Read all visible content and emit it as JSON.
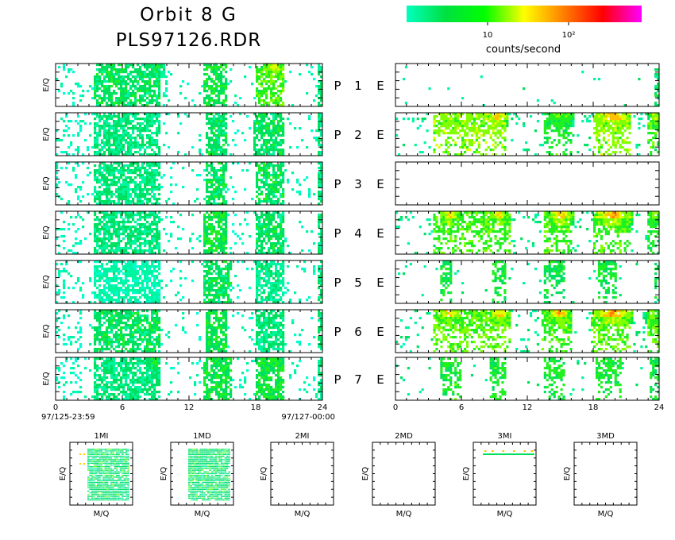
{
  "header": {
    "title": "Orbit 8 G",
    "filename": "PLS97126.RDR",
    "colorbar_ticks": [
      "10",
      "10²"
    ],
    "colorbar_label": "counts/second",
    "colorbar_colors": [
      "#00ffbf",
      "#00e040",
      "#00ff00",
      "#ffff00",
      "#ff8000",
      "#ff0000",
      "#ff00ff"
    ]
  },
  "chart_data": {
    "type": "heatmap",
    "xlabel": "",
    "ylabel": "E/Q",
    "xlim": [
      0,
      24
    ],
    "xticks": [
      0,
      6,
      12,
      18,
      24
    ],
    "time_start": "97/125-23:59",
    "time_end": "97/127-00:00",
    "panels": [
      {
        "label": "P",
        "index": "1",
        "right": "E",
        "left_bands": [
          [
            3.5,
            9.5,
            0.25
          ],
          [
            13.3,
            15.5,
            0.3
          ],
          [
            18,
            20.5,
            0.4
          ]
        ],
        "left_hot": [
          [
            4.5,
            5.2,
            0.35
          ],
          [
            8.5,
            9.8,
            0.3
          ],
          [
            18.8,
            20.5,
            0.65
          ]
        ],
        "right_bands": [],
        "right_hot": [],
        "right_level": "sparse"
      },
      {
        "label": "P",
        "index": "2",
        "right": "E",
        "left_bands": [
          [
            3.5,
            9.5,
            0.2
          ],
          [
            13.5,
            15.5,
            0.25
          ],
          [
            17.8,
            20.5,
            0.25
          ]
        ],
        "left_hot": [],
        "right_bands": [
          [
            3.5,
            10,
            0.5
          ],
          [
            13.5,
            16,
            0.35
          ],
          [
            18,
            21.5,
            0.5
          ],
          [
            23,
            24,
            0.4
          ]
        ],
        "right_hot": [
          [
            4.2,
            5.8,
            0.6
          ],
          [
            8.3,
            10.2,
            0.75
          ],
          [
            13.8,
            16.2,
            0.5
          ],
          [
            18.2,
            21.4,
            0.8
          ],
          [
            23.2,
            24,
            0.6
          ]
        ],
        "right_level": "banded"
      },
      {
        "label": "P",
        "index": "3",
        "right": "E",
        "left_bands": [
          [
            3.5,
            9.5,
            0.2
          ],
          [
            13.5,
            15.5,
            0.25
          ],
          [
            18,
            20.5,
            0.25
          ]
        ],
        "left_hot": [],
        "right_bands": [],
        "right_hot": [],
        "right_level": "empty"
      },
      {
        "label": "P",
        "index": "4",
        "right": "E",
        "left_bands": [
          [
            3.5,
            9.5,
            0.2
          ],
          [
            13.3,
            15.5,
            0.3
          ],
          [
            18,
            20.5,
            0.25
          ]
        ],
        "left_hot": [],
        "right_bands": [
          [
            3.5,
            10.5,
            0.4
          ],
          [
            13.5,
            16,
            0.4
          ],
          [
            18,
            21.5,
            0.4
          ],
          [
            23,
            24,
            0.35
          ]
        ],
        "right_hot": [
          [
            4.0,
            5.9,
            0.7
          ],
          [
            8.5,
            10.3,
            0.7
          ],
          [
            13.8,
            16.2,
            0.75
          ],
          [
            18.0,
            21.6,
            0.8
          ],
          [
            23.2,
            24,
            0.55
          ]
        ],
        "right_level": "banded"
      },
      {
        "label": "P",
        "index": "5",
        "right": "E",
        "left_bands": [
          [
            3.5,
            9.5,
            0.1
          ],
          [
            13.3,
            15.8,
            0.25
          ],
          [
            18,
            20.5,
            0.15
          ]
        ],
        "left_hot": [],
        "right_bands": [
          [
            4,
            5.2,
            0.3
          ],
          [
            8.8,
            10,
            0.3
          ],
          [
            13.6,
            15.5,
            0.3
          ],
          [
            18.5,
            20.2,
            0.3
          ]
        ],
        "right_hot": [],
        "right_level": "light"
      },
      {
        "label": "P",
        "index": "6",
        "right": "E",
        "left_bands": [
          [
            3.5,
            9.5,
            0.25
          ],
          [
            13.5,
            15.5,
            0.3
          ],
          [
            18,
            20.5,
            0.2
          ]
        ],
        "left_hot": [],
        "right_bands": [
          [
            3.5,
            10.5,
            0.45
          ],
          [
            13.2,
            16,
            0.4
          ],
          [
            17.8,
            21.5,
            0.45
          ],
          [
            23,
            24,
            0.4
          ]
        ],
        "right_hot": [
          [
            3.8,
            6.0,
            0.7
          ],
          [
            8.5,
            10.5,
            0.7
          ],
          [
            13.8,
            16.0,
            0.75
          ],
          [
            17.9,
            21.6,
            0.8
          ],
          [
            22.8,
            24,
            0.55
          ]
        ],
        "right_level": "banded"
      },
      {
        "label": "P",
        "index": "7",
        "right": "E",
        "left_bands": [
          [
            3.5,
            9.5,
            0.2
          ],
          [
            13.3,
            15.8,
            0.3
          ],
          [
            18,
            20.5,
            0.3
          ]
        ],
        "left_hot": [
          [
            8.2,
            9.5,
            0.4
          ],
          [
            18.5,
            20.5,
            0.4
          ]
        ],
        "right_bands": [
          [
            4,
            6,
            0.35
          ],
          [
            8.6,
            10,
            0.35
          ],
          [
            13.6,
            15.5,
            0.35
          ],
          [
            18.3,
            20.5,
            0.35
          ],
          [
            23.2,
            24,
            0.3
          ]
        ],
        "right_hot": [],
        "right_level": "light"
      }
    ]
  },
  "mass_panels": [
    {
      "title": "1MI",
      "ylabel": "E/Q",
      "xlabel": "M/Q",
      "fill": "dense"
    },
    {
      "title": "1MD",
      "ylabel": "E/Q",
      "xlabel": "M/Q",
      "fill": "dense"
    },
    {
      "title": "2MI",
      "ylabel": "E/Q",
      "xlabel": "M/Q",
      "fill": "empty"
    },
    {
      "title": "2MD",
      "ylabel": "E/Q",
      "xlabel": "M/Q",
      "fill": "empty"
    },
    {
      "title": "3MI",
      "ylabel": "E/Q",
      "xlabel": "M/Q",
      "fill": "line"
    },
    {
      "title": "3MD",
      "ylabel": "E/Q",
      "xlabel": "M/Q",
      "fill": "empty"
    }
  ]
}
